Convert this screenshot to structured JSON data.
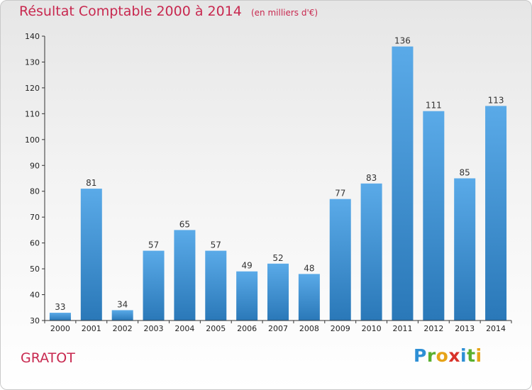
{
  "title": "Résultat Comptable 2000 à 2014",
  "subtitle": "(en milliers d'€)",
  "commune": "GRATOT",
  "logo": {
    "letters": [
      "P",
      "r",
      "o",
      "x",
      "i",
      "t",
      "i"
    ]
  },
  "colors": {
    "title": "#c8284f",
    "bar_top": "#5aaae8",
    "bar_bottom": "#2a78b8"
  },
  "chart_data": {
    "type": "bar",
    "title": "Résultat Comptable 2000 à 2014",
    "subtitle": "(en milliers d'€)",
    "categories": [
      "2000",
      "2001",
      "2002",
      "2003",
      "2004",
      "2005",
      "2006",
      "2007",
      "2008",
      "2009",
      "2010",
      "2011",
      "2012",
      "2013",
      "2014"
    ],
    "values": [
      33,
      81,
      34,
      57,
      65,
      57,
      49,
      52,
      48,
      77,
      83,
      136,
      111,
      85,
      113
    ],
    "ylim": [
      30,
      140
    ],
    "yticks": [
      30,
      40,
      50,
      60,
      70,
      80,
      90,
      100,
      110,
      120,
      130,
      140
    ],
    "grid": false,
    "legend": "none"
  }
}
